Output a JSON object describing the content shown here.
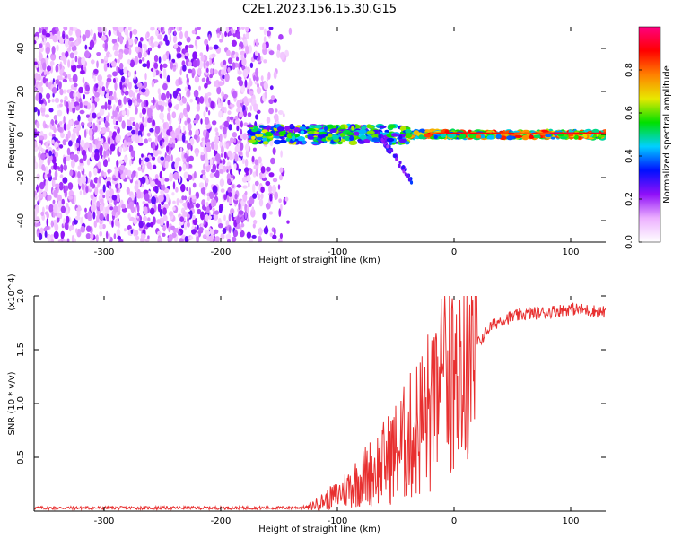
{
  "figure_title": "C2E1.2023.156.15.30.G15",
  "chart_data": [
    {
      "type": "heatmap",
      "title": "C2E1.2023.156.15.30.G15",
      "xlabel": "Height of straight line (km)",
      "ylabel": "Frequency (Hz)",
      "xlim": [
        -360,
        130
      ],
      "ylim": [
        -50,
        50
      ],
      "xticks": [
        -300,
        -200,
        -100,
        0,
        100
      ],
      "yticks": [
        -40,
        -20,
        0,
        20,
        40
      ],
      "colorbar": {
        "label": "Normalized spectral amplitude",
        "range": [
          0.0,
          1.0
        ],
        "ticks": [
          0.0,
          0.2,
          0.4,
          0.6,
          0.8
        ],
        "colors": [
          "#ffffff",
          "#ecb0ff",
          "#9010f8",
          "#0010ff",
          "#00d0ff",
          "#00e000",
          "#e8e800",
          "#ff8000",
          "#ff0000",
          "#ff0080"
        ]
      },
      "regions": [
        {
          "description": "noise",
          "x": [
            -360,
            -140
          ],
          "y": [
            -50,
            50
          ],
          "amplitude": 0.12
        },
        {
          "description": "signal",
          "x": [
            -175,
            130
          ],
          "y_center": 0,
          "amplitude_peak": 0.9
        }
      ],
      "features": [
        {
          "x": [
            -65,
            -35
          ],
          "y": [
            0,
            -22
          ],
          "amplitude": 0.3
        }
      ]
    },
    {
      "type": "line",
      "xlabel": "Height of straight line (km)",
      "ylabel": "SNR (10 * v/v)",
      "y_multiplier": "(x10^4)",
      "xlim": [
        -360,
        130
      ],
      "ylim": [
        0,
        20000
      ],
      "xticks": [
        -300,
        -200,
        -100,
        0,
        100
      ],
      "yticks": [
        5000,
        10000,
        15000,
        20000
      ],
      "ytick_labels": [
        "0.5",
        "1.0",
        "1.5",
        "2.0"
      ],
      "color": "#e83030",
      "anchors": {
        "x": [
          -360,
          -150,
          -125,
          -100,
          -80,
          -60,
          -50,
          -40,
          -30,
          -20,
          -10,
          0,
          10,
          20,
          30,
          40,
          60,
          80,
          100,
          130
        ],
        "y": [
          300,
          300,
          350,
          1500,
          3000,
          4500,
          5500,
          6500,
          8000,
          9500,
          10500,
          11500,
          12500,
          15500,
          17000,
          17800,
          18300,
          18500,
          18800,
          18500
        ]
      }
    }
  ]
}
